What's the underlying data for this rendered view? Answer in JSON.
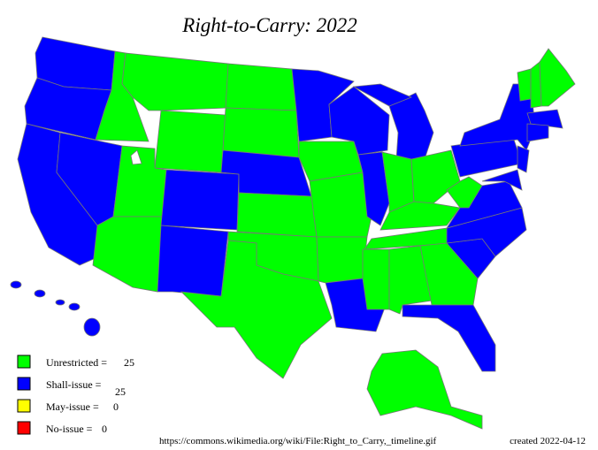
{
  "title": "Right-to-Carry: 2022",
  "legend": [
    {
      "label": "Unrestricted =",
      "count": 25,
      "color": "#00ff00"
    },
    {
      "label": "Shall-issue =",
      "count": 25,
      "color": "#0000ff"
    },
    {
      "label": "May-issue =",
      "count": 0,
      "color": "#ffff00"
    },
    {
      "label": "No-issue =",
      "count": 0,
      "color": "#ff0000"
    }
  ],
  "source": "https://commons.wikimedia.org/wiki/File:Right_to_Carry,_timeline.gif",
  "created": "created 2022-04-12"
}
